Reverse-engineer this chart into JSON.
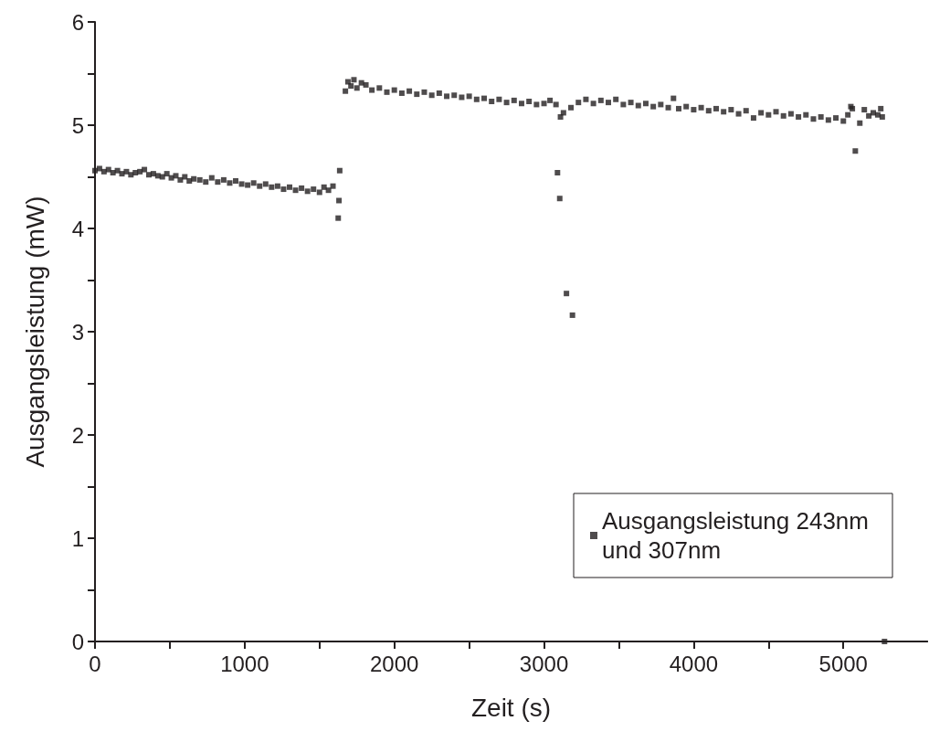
{
  "chart_data": {
    "type": "scatter",
    "xlabel": "Zeit (s)",
    "ylabel": "Ausgangsleistung (mW)",
    "xlim": [
      0,
      5560
    ],
    "ylim": [
      0,
      6
    ],
    "xticks": [
      0,
      {
        "value": 500,
        "label": null
      },
      1000,
      {
        "value": 1500,
        "label": null
      },
      2000,
      {
        "value": 2500,
        "label": null
      },
      3000,
      {
        "value": 3500,
        "label": null
      },
      4000,
      {
        "value": 4500,
        "label": null
      },
      5000
    ],
    "yticks": [
      0,
      {
        "value": 0.5,
        "label": null
      },
      1,
      {
        "value": 1.5,
        "label": null
      },
      2,
      {
        "value": 2.5,
        "label": null
      },
      3,
      {
        "value": 3.5,
        "label": null
      },
      4,
      {
        "value": 4.5,
        "label": null
      },
      5,
      {
        "value": 5.5,
        "label": null
      },
      6
    ],
    "grid": false,
    "legend": "bottom right",
    "marker": "square",
    "series": [
      {
        "name": "Ausgangsleistung 243nm und 307nm",
        "color": "#231f20",
        "x": [
          0,
          30,
          60,
          90,
          120,
          150,
          180,
          210,
          240,
          270,
          300,
          330,
          360,
          390,
          420,
          450,
          480,
          510,
          540,
          570,
          600,
          630,
          660,
          700,
          740,
          780,
          820,
          860,
          900,
          940,
          980,
          1020,
          1060,
          1100,
          1140,
          1180,
          1220,
          1260,
          1300,
          1340,
          1380,
          1420,
          1460,
          1500,
          1530,
          1560,
          1590,
          1625,
          1630,
          1635,
          1673,
          1690,
          1710,
          1730,
          1750,
          1780,
          1810,
          1850,
          1900,
          1950,
          2000,
          2050,
          2100,
          2150,
          2200,
          2250,
          2300,
          2350,
          2400,
          2450,
          2500,
          2550,
          2600,
          2650,
          2700,
          2750,
          2800,
          2850,
          2900,
          2950,
          3000,
          3040,
          3080,
          3090,
          3105,
          3110,
          3130,
          3150,
          3190,
          3180,
          3230,
          3280,
          3330,
          3380,
          3430,
          3480,
          3530,
          3580,
          3630,
          3680,
          3730,
          3780,
          3830,
          3865,
          3900,
          3950,
          4000,
          4050,
          4100,
          4150,
          4200,
          4250,
          4300,
          4350,
          4400,
          4450,
          4500,
          4550,
          4600,
          4650,
          4700,
          4750,
          4800,
          4850,
          4900,
          4950,
          5000,
          5030,
          5050,
          5060,
          5080,
          5110,
          5140,
          5170,
          5200,
          5230,
          5250,
          5260,
          5275
        ],
        "values": [
          4.56,
          4.58,
          4.55,
          4.57,
          4.54,
          4.56,
          4.53,
          4.55,
          4.52,
          4.54,
          4.55,
          4.57,
          4.52,
          4.53,
          4.51,
          4.5,
          4.53,
          4.49,
          4.51,
          4.47,
          4.5,
          4.46,
          4.48,
          4.47,
          4.45,
          4.49,
          4.45,
          4.47,
          4.44,
          4.46,
          4.43,
          4.42,
          4.44,
          4.41,
          4.43,
          4.4,
          4.41,
          4.38,
          4.4,
          4.37,
          4.39,
          4.36,
          4.38,
          4.35,
          4.4,
          4.37,
          4.41,
          4.1,
          4.27,
          4.56,
          5.33,
          5.42,
          5.38,
          5.44,
          5.36,
          5.41,
          5.39,
          5.34,
          5.36,
          5.32,
          5.34,
          5.31,
          5.33,
          5.3,
          5.32,
          5.29,
          5.31,
          5.28,
          5.29,
          5.27,
          5.28,
          5.25,
          5.26,
          5.23,
          5.25,
          5.22,
          5.24,
          5.21,
          5.23,
          5.2,
          5.21,
          5.24,
          5.2,
          4.54,
          4.29,
          5.08,
          5.12,
          3.37,
          3.16,
          5.17,
          5.22,
          5.25,
          5.21,
          5.24,
          5.22,
          5.25,
          5.2,
          5.22,
          5.19,
          5.21,
          5.18,
          5.2,
          5.17,
          5.26,
          5.16,
          5.18,
          5.15,
          5.17,
          5.14,
          5.16,
          5.13,
          5.15,
          5.11,
          5.14,
          5.07,
          5.12,
          5.1,
          5.13,
          5.09,
          5.11,
          5.08,
          5.1,
          5.06,
          5.08,
          5.05,
          5.07,
          5.04,
          5.1,
          5.18,
          5.16,
          4.75,
          5.02,
          5.15,
          5.09,
          5.12,
          5.1,
          5.16,
          5.08,
          0
        ]
      }
    ]
  }
}
